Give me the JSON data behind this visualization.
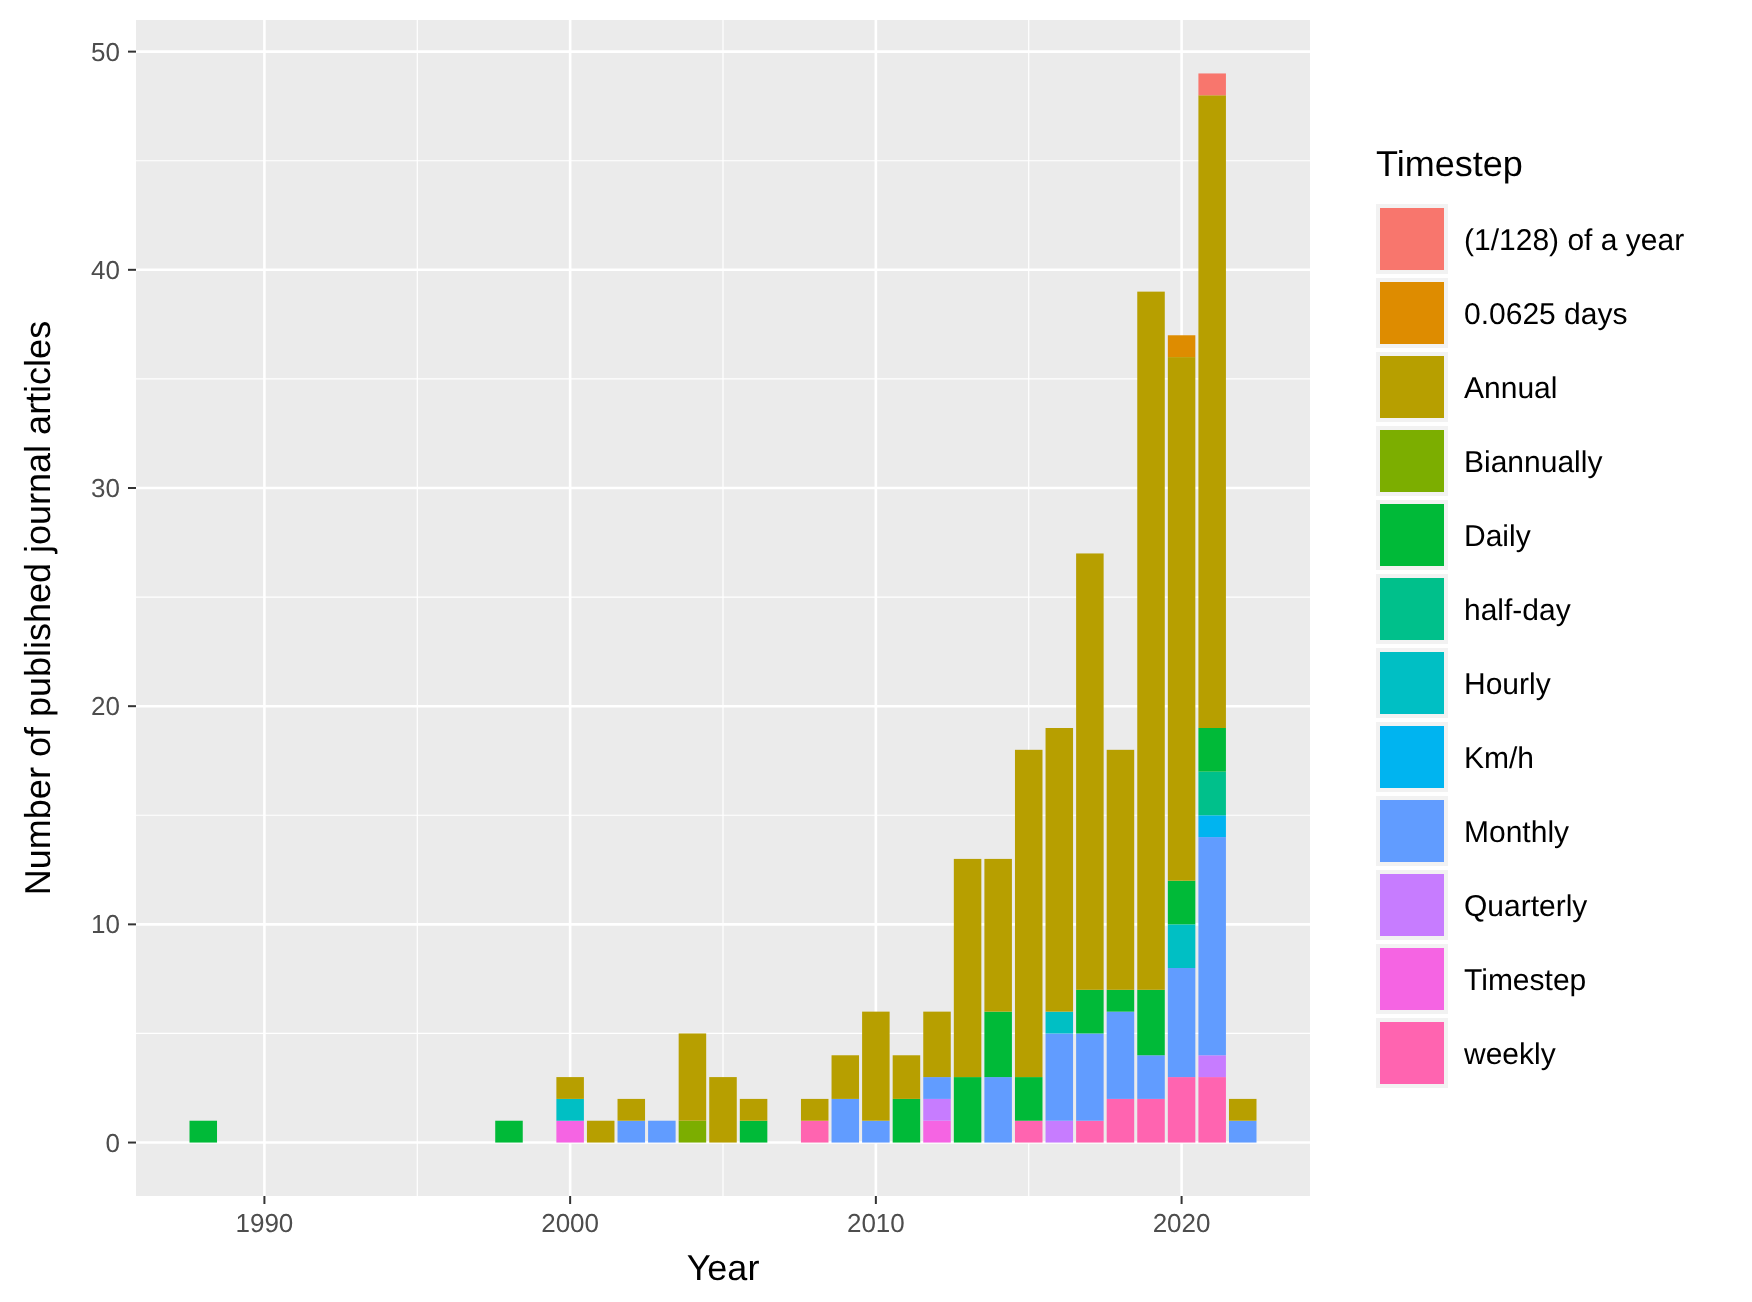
{
  "chart_data": {
    "type": "bar",
    "stacked": true,
    "xlabel": "Year",
    "ylabel": "Number of published journal articles",
    "legend_title": "Timestep",
    "legend": "right",
    "grid": true,
    "x": [
      1988,
      1998,
      2000,
      2001,
      2002,
      2003,
      2004,
      2005,
      2006,
      2008,
      2009,
      2010,
      2011,
      2012,
      2013,
      2014,
      2015,
      2016,
      2017,
      2018,
      2019,
      2020,
      2021,
      2022
    ],
    "xlim": [
      1985.8,
      2024.2
    ],
    "xticks": [
      1990,
      2000,
      2010,
      2020
    ],
    "ylim": [
      -2.45,
      51.45
    ],
    "yticks": [
      0,
      10,
      20,
      30,
      40,
      50
    ],
    "series": [
      {
        "name": "weekly",
        "color": "#ff64b0",
        "values": [
          null,
          null,
          null,
          null,
          null,
          null,
          null,
          null,
          null,
          1,
          null,
          null,
          null,
          null,
          null,
          null,
          1,
          null,
          1,
          2,
          2,
          3,
          3,
          null
        ]
      },
      {
        "name": "Timestep",
        "color": "#f564e3",
        "values": [
          null,
          null,
          1,
          null,
          null,
          null,
          null,
          null,
          null,
          null,
          null,
          null,
          null,
          1,
          null,
          null,
          null,
          null,
          null,
          null,
          null,
          null,
          null,
          null
        ]
      },
      {
        "name": "Quarterly",
        "color": "#c77cff",
        "values": [
          null,
          null,
          null,
          null,
          null,
          null,
          null,
          null,
          null,
          null,
          null,
          null,
          null,
          1,
          null,
          null,
          null,
          1,
          null,
          null,
          null,
          null,
          1,
          null
        ]
      },
      {
        "name": "Monthly",
        "color": "#619cff",
        "values": [
          null,
          null,
          null,
          null,
          1,
          1,
          null,
          null,
          null,
          null,
          2,
          1,
          null,
          1,
          null,
          3,
          null,
          4,
          4,
          4,
          2,
          5,
          10,
          1
        ]
      },
      {
        "name": "Km/h",
        "color": "#00b4f0",
        "values": [
          null,
          null,
          null,
          null,
          null,
          null,
          null,
          null,
          null,
          null,
          null,
          null,
          null,
          null,
          null,
          null,
          null,
          null,
          null,
          null,
          null,
          null,
          1,
          null
        ]
      },
      {
        "name": "Hourly",
        "color": "#00bfc4",
        "values": [
          null,
          null,
          1,
          null,
          null,
          null,
          null,
          null,
          null,
          null,
          null,
          null,
          null,
          null,
          null,
          null,
          null,
          1,
          null,
          null,
          null,
          2,
          null,
          null
        ]
      },
      {
        "name": "half-day",
        "color": "#00c08b",
        "values": [
          null,
          null,
          null,
          null,
          null,
          null,
          null,
          null,
          null,
          null,
          null,
          null,
          null,
          null,
          null,
          null,
          null,
          null,
          null,
          null,
          null,
          null,
          2,
          null
        ]
      },
      {
        "name": "Daily",
        "color": "#00ba38",
        "values": [
          1,
          1,
          null,
          null,
          null,
          null,
          null,
          null,
          1,
          null,
          null,
          null,
          2,
          null,
          3,
          3,
          2,
          null,
          2,
          1,
          3,
          2,
          2,
          null
        ]
      },
      {
        "name": "Biannually",
        "color": "#7cae00",
        "values": [
          null,
          null,
          null,
          null,
          null,
          null,
          1,
          null,
          null,
          null,
          null,
          null,
          null,
          null,
          null,
          null,
          null,
          null,
          null,
          null,
          null,
          null,
          null,
          null
        ]
      },
      {
        "name": "Annual",
        "color": "#b79f00",
        "values": [
          null,
          null,
          1,
          1,
          1,
          null,
          4,
          3,
          1,
          1,
          2,
          5,
          2,
          3,
          10,
          7,
          15,
          13,
          20,
          11,
          32,
          24,
          29,
          1
        ]
      },
      {
        "name": "0.0625 days",
        "color": "#de8c00",
        "values": [
          null,
          null,
          null,
          null,
          null,
          null,
          null,
          null,
          null,
          null,
          null,
          null,
          null,
          null,
          null,
          null,
          null,
          null,
          null,
          null,
          null,
          1,
          null,
          null
        ]
      },
      {
        "name": "(1/128) of a year",
        "color": "#f8766d",
        "values": [
          null,
          null,
          null,
          null,
          null,
          null,
          null,
          null,
          null,
          null,
          null,
          null,
          null,
          null,
          null,
          null,
          null,
          null,
          null,
          null,
          null,
          null,
          1,
          null
        ]
      }
    ]
  }
}
